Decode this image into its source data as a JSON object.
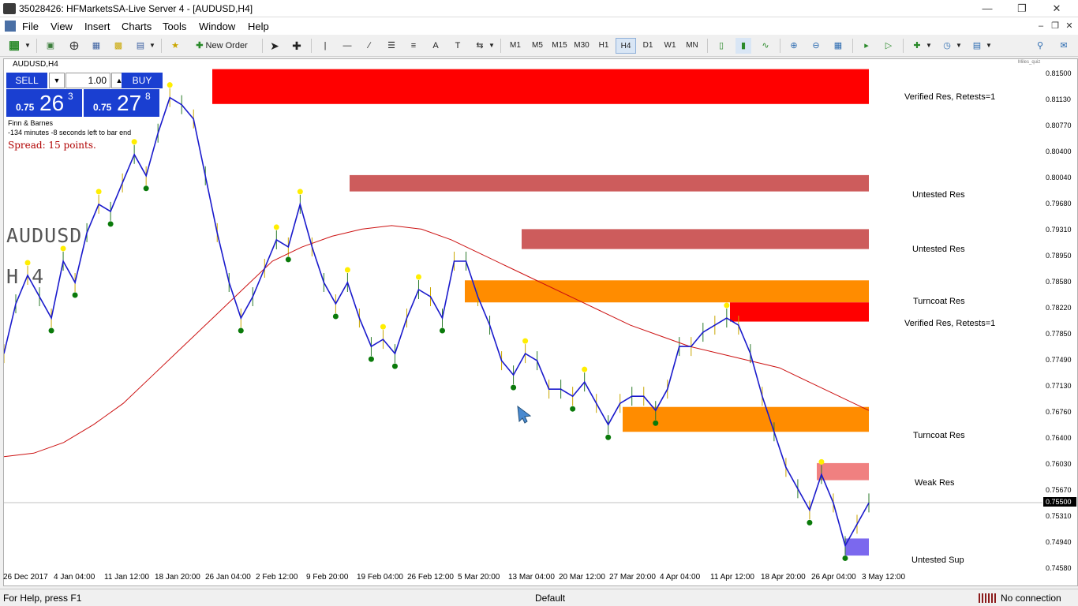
{
  "window": {
    "title": "35028426: HFMarketsSA-Live Server 4 - [AUDUSD,H4]",
    "min_icon": "minimize-icon",
    "max_icon": "maximize-icon",
    "close_icon": "close-icon"
  },
  "menu": [
    "File",
    "View",
    "Insert",
    "Charts",
    "Tools",
    "Window",
    "Help"
  ],
  "toolbar": {
    "new_order": "New Order",
    "timeframes": [
      "M1",
      "M5",
      "M15",
      "M30",
      "H1",
      "H4",
      "D1",
      "W1",
      "MN"
    ],
    "active_timeframe": "H4"
  },
  "chart": {
    "label": "AUDUSD,H4",
    "symbol": "AUDUSD",
    "period": "H 4",
    "mini_label": "Miles_quiz"
  },
  "trade": {
    "sell": "SELL",
    "buy": "BUY",
    "lot": "1.00",
    "sell_small": "0.75",
    "sell_big": "26",
    "sell_sup": "3",
    "buy_small": "0.75",
    "buy_big": "27",
    "buy_sup": "8"
  },
  "info": {
    "broker": "Finn & Barnes",
    "timer": "-134 minutes -8 seconds left to bar end",
    "spread": "Spread: 15 points."
  },
  "zones": [
    {
      "label": "Verified Res, Retests=1",
      "color": "#ff0000"
    },
    {
      "label": "Untested Res",
      "color": "#cd5c5c"
    },
    {
      "label": "Untested Res",
      "color": "#cd5c5c"
    },
    {
      "label": "Turncoat Res",
      "color": "#ff8c00"
    },
    {
      "label": "Verified Res, Retests=1",
      "color": "#ff0000"
    },
    {
      "label": "Turncoat Res",
      "color": "#ff8c00"
    },
    {
      "label": "Weak Res",
      "color": "#f08080"
    },
    {
      "label": "Untested Sup",
      "color": "#7b68ee"
    }
  ],
  "price_axis": [
    "0.81500",
    "0.81130",
    "0.80770",
    "0.80400",
    "0.80040",
    "0.79680",
    "0.79310",
    "0.78950",
    "0.78580",
    "0.78220",
    "0.77850",
    "0.77490",
    "0.77130",
    "0.76760",
    "0.76400",
    "0.76030",
    "0.75670",
    "0.75310",
    "0.74940",
    "0.74580"
  ],
  "current_price": "0.75500",
  "time_axis": [
    "26 Dec 2017",
    "4 Jan 04:00",
    "11 Jan 12:00",
    "18 Jan 20:00",
    "26 Jan 04:00",
    "2 Feb 12:00",
    "9 Feb 20:00",
    "19 Feb 04:00",
    "26 Feb 12:00",
    "5 Mar 20:00",
    "13 Mar 04:00",
    "20 Mar 12:00",
    "27 Mar 20:00",
    "4 Apr 04:00",
    "11 Apr 12:00",
    "18 Apr 20:00",
    "26 Apr 04:00",
    "3 May 12:00"
  ],
  "chart_data": {
    "type": "line",
    "title": "AUDUSD,H4",
    "ylim": [
      0.7445,
      0.8164
    ],
    "series": [
      {
        "values": [
          0.775,
          0.782,
          0.786,
          0.783,
          0.78,
          0.788,
          0.785,
          0.792,
          0.796,
          0.795,
          0.799,
          0.803,
          0.8,
          0.806,
          0.811,
          0.81,
          0.808,
          0.8,
          0.792,
          0.785,
          0.78,
          0.783,
          0.787,
          0.791,
          0.79,
          0.796,
          0.79,
          0.785,
          0.782,
          0.785,
          0.78,
          0.776,
          0.777,
          0.775,
          0.78,
          0.784,
          0.783,
          0.78,
          0.788,
          0.788,
          0.783,
          0.779,
          0.774,
          0.772,
          0.775,
          0.774,
          0.77,
          0.77,
          0.769,
          0.771,
          0.768,
          0.765,
          0.768,
          0.769,
          0.769,
          0.767,
          0.77,
          0.776,
          0.776,
          0.778,
          0.779,
          0.78,
          0.779,
          0.775,
          0.769,
          0.764,
          0.759,
          0.756,
          0.753,
          0.758,
          0.754,
          0.748,
          0.751,
          0.754
        ]
      },
      {
        "values": [
          0.7605,
          0.761,
          0.7625,
          0.765,
          0.768,
          0.772,
          0.776,
          0.78,
          0.784,
          0.788,
          0.79,
          0.7915,
          0.7925,
          0.793,
          0.7925,
          0.791,
          0.789,
          0.787,
          0.785,
          0.783,
          0.781,
          0.779,
          0.7775,
          0.776,
          0.775,
          0.774,
          0.773,
          0.771,
          0.769,
          0.767
        ]
      }
    ],
    "zones": [
      {
        "label": "Verified Res, Retests=1",
        "low": 0.8101,
        "high": 0.815
      },
      {
        "label": "Untested Res",
        "low": 0.7978,
        "high": 0.8001
      },
      {
        "label": "Untested Res",
        "low": 0.7897,
        "high": 0.7925
      },
      {
        "label": "Turncoat Res",
        "low": 0.7822,
        "high": 0.7853
      },
      {
        "label": "Verified Res, Retests=1",
        "low": 0.7795,
        "high": 0.7822
      },
      {
        "label": "Turncoat Res",
        "low": 0.764,
        "high": 0.7675
      },
      {
        "label": "Weak Res",
        "low": 0.7572,
        "high": 0.7596
      },
      {
        "label": "Untested Sup",
        "low": 0.7466,
        "high": 0.749
      }
    ]
  }
}
